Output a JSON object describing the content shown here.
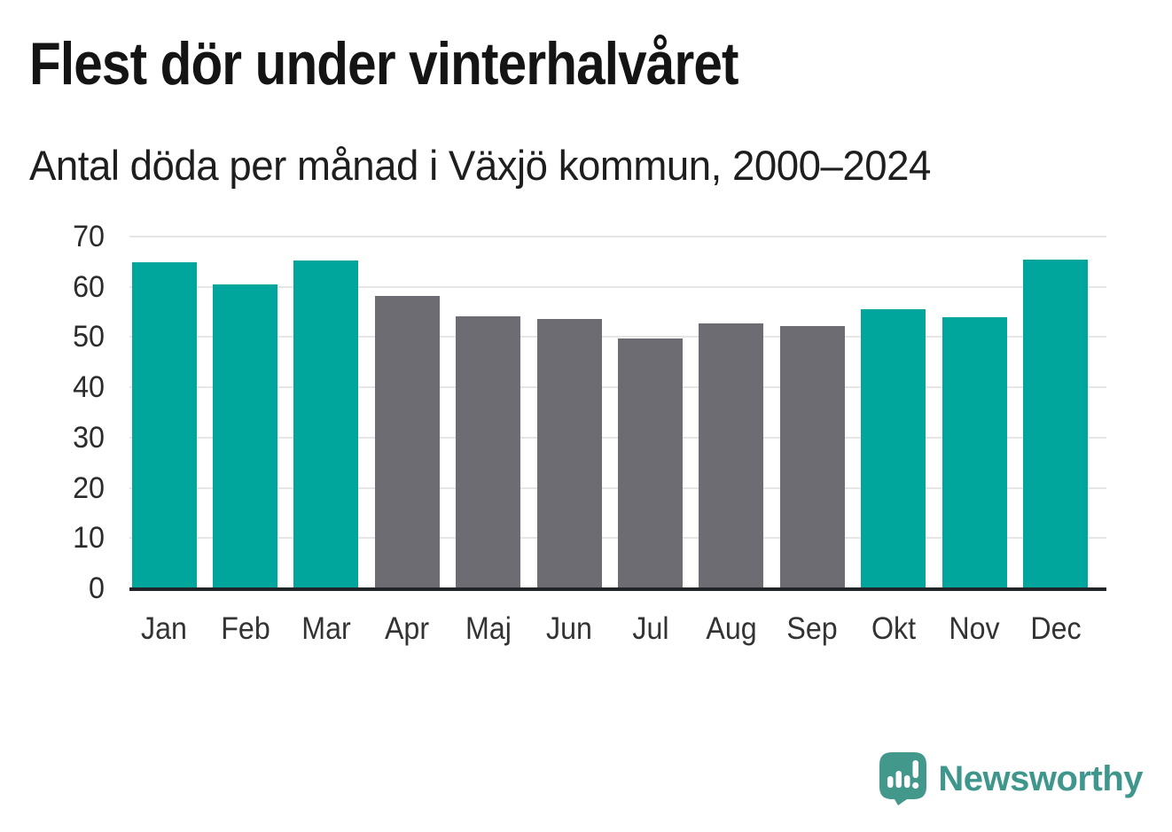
{
  "header": {
    "title": "Flest dör under vinterhalvåret",
    "subtitle": "Antal döda per månad i Växjö kommun, 2000–2024"
  },
  "chart_data": {
    "type": "bar",
    "title": "Flest dör under vinterhalvåret",
    "subtitle": "Antal döda per månad i Växjö kommun, 2000–2024",
    "categories": [
      "Jan",
      "Feb",
      "Mar",
      "Apr",
      "Maj",
      "Jun",
      "Jul",
      "Aug",
      "Sep",
      "Okt",
      "Nov",
      "Dec"
    ],
    "values": [
      64.8,
      60.4,
      65.2,
      58.1,
      54.2,
      53.6,
      49.7,
      52.8,
      52.2,
      55.6,
      54.0,
      65.4
    ],
    "bar_color_roles": [
      "teal",
      "teal",
      "teal",
      "gray",
      "gray",
      "gray",
      "gray",
      "gray",
      "gray",
      "teal",
      "teal",
      "teal"
    ],
    "palette": {
      "teal": "#00A59B",
      "gray": "#6C6C72"
    },
    "xlabel": "",
    "ylabel": "",
    "ylim": [
      0,
      70
    ],
    "yticks": [
      0,
      10,
      20,
      30,
      40,
      50,
      60,
      70
    ],
    "grid": "horizontal",
    "gridline_color": "#e6e6e6",
    "axis_line_color": "#232528",
    "legend": "none"
  },
  "footer": {
    "brand": "Newsworthy",
    "brand_color": "#3F968C",
    "logo_icon": "newsworthy-speech-bubble-chart-icon",
    "logo_bubble_color": "#43988C",
    "logo_bubble_shadow_color": "#2F7E74",
    "logo_glyph_color": "#ffffff"
  }
}
